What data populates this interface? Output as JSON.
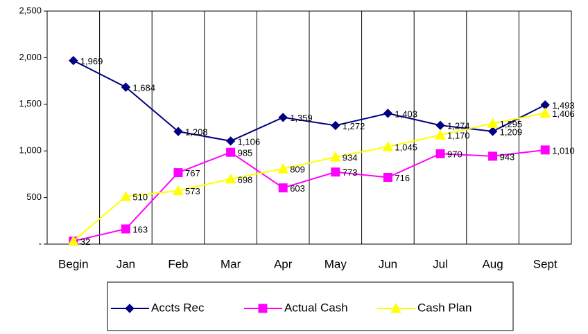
{
  "chart_data": {
    "type": "line",
    "categories": [
      "Begin",
      "Jan",
      "Feb",
      "Mar",
      "Apr",
      "May",
      "Jun",
      "Jul",
      "Aug",
      "Sept"
    ],
    "series": [
      {
        "name": "Accts Rec",
        "color": "#000080",
        "marker": "diamond",
        "values": [
          1969,
          1684,
          1208,
          1106,
          1359,
          1272,
          1403,
          1274,
          1209,
          1493
        ],
        "value_labels": [
          "1,969",
          "1,684",
          "1,208",
          "1,106",
          "1,359",
          "1,272",
          "1,403",
          "1,274",
          "1,209",
          "1,493"
        ]
      },
      {
        "name": "Actual Cash",
        "color": "#ff00ff",
        "marker": "square",
        "values": [
          32,
          163,
          767,
          985,
          603,
          773,
          716,
          970,
          943,
          1010
        ],
        "value_labels": [
          "32",
          "163",
          "767",
          "985",
          "603",
          "773",
          "716",
          "970",
          "943",
          "1,010"
        ]
      },
      {
        "name": "Cash Plan",
        "color": "#ffff00",
        "marker": "triangle",
        "values": [
          32,
          510,
          573,
          698,
          809,
          934,
          1045,
          1170,
          1295,
          1406
        ],
        "value_labels": [
          "32",
          "510",
          "573",
          "698",
          "809",
          "934",
          "1,045",
          "1,170",
          "1,295",
          "1,406"
        ]
      }
    ],
    "ylim": [
      0,
      2500
    ],
    "yticks": [
      {
        "value": 0,
        "label": "-"
      },
      500,
      {
        "value": 1000,
        "label": "1,000"
      },
      {
        "value": 1500,
        "label": "1,500"
      },
      {
        "value": 2000,
        "label": "2,000"
      },
      {
        "value": 2500,
        "label": "2,500"
      }
    ],
    "legend": "bottom"
  }
}
